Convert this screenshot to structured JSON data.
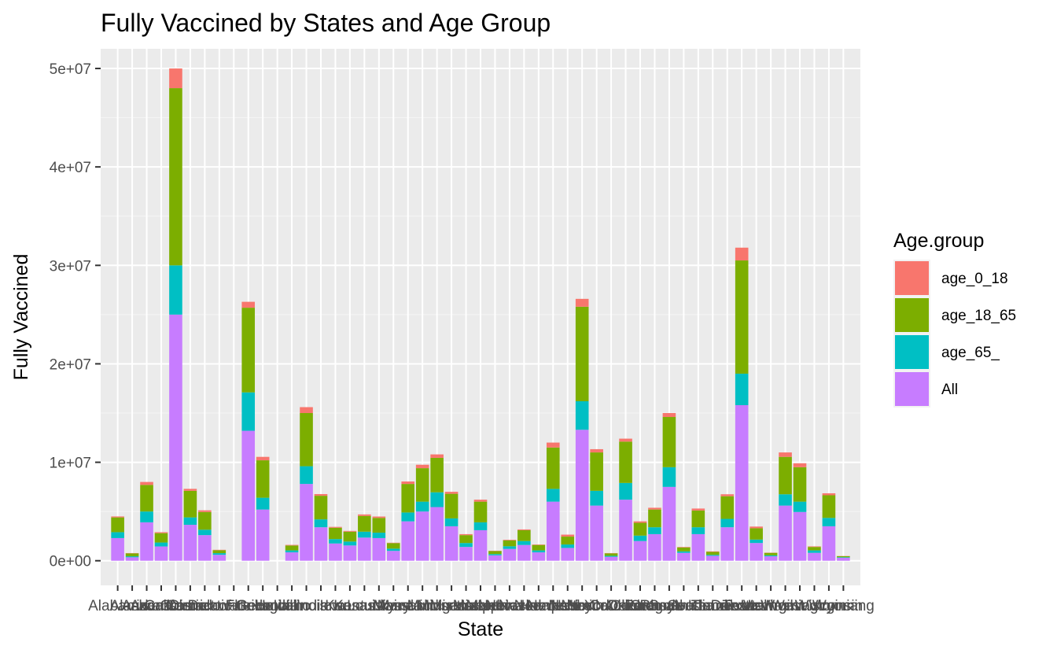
{
  "chart_data": {
    "type": "bar",
    "stacked": true,
    "title": "Fully Vaccined by States and Age Group",
    "xlabel": "State",
    "ylabel": "Fully Vaccined",
    "ylim": [
      0,
      52000000
    ],
    "yticks": [
      0,
      10000000,
      20000000,
      30000000,
      40000000,
      50000000
    ],
    "ytick_labels": [
      "0e+00",
      "1e+07",
      "2e+07",
      "3e+07",
      "4e+07",
      "5e+07"
    ],
    "grid": true,
    "legend_title": "Age.group",
    "legend_position": "right",
    "categories": [
      "Alabama",
      "Alaska",
      "Arizona",
      "Arkansas",
      "California",
      "Colorado",
      "Connecticut",
      "Delaware",
      "District of Columbia",
      "Florida",
      "Georgia",
      "Hawaii",
      "Idaho",
      "Illinois",
      "Indiana",
      "Iowa",
      "Kansas",
      "Kentucky",
      "Louisiana",
      "Maine",
      "Maryland",
      "Massachusetts",
      "Michigan",
      "Minnesota",
      "Mississippi",
      "Missouri",
      "Montana",
      "Nebraska",
      "Nevada",
      "New Hampshire",
      "New Jersey",
      "New Mexico",
      "New York",
      "North Carolina",
      "North Dakota",
      "Ohio",
      "Oklahoma",
      "Oregon",
      "Pennsylvania",
      "Rhode Island",
      "South Carolina",
      "South Dakota",
      "Tennessee",
      "Texas",
      "Utah",
      "Vermont",
      "Virginia",
      "Washington",
      "West Virginia",
      "Wisconsin",
      "Wyoming"
    ],
    "series": [
      {
        "name": "All",
        "color": "#C77CFF",
        "values": [
          2300000,
          350000,
          3900000,
          1450000,
          25000000,
          3650000,
          2600000,
          600000,
          0,
          13200000,
          5200000,
          0,
          850000,
          7800000,
          3400000,
          1750000,
          1550000,
          2350000,
          2300000,
          1000000,
          4000000,
          5000000,
          5450000,
          3500000,
          1400000,
          3100000,
          550000,
          1200000,
          1600000,
          850000,
          6000000,
          1300000,
          13300000,
          5600000,
          400000,
          6200000,
          2000000,
          2700000,
          7500000,
          800000,
          2700000,
          500000,
          3400000,
          15800000,
          1800000,
          450000,
          5600000,
          4950000,
          800000,
          3500000,
          300000
        ]
      },
      {
        "name": "age_65_",
        "color": "#00BFC4",
        "values": [
          600000,
          100000,
          1100000,
          400000,
          5000000,
          750000,
          550000,
          170000,
          0,
          3900000,
          1200000,
          0,
          200000,
          1800000,
          800000,
          450000,
          400000,
          600000,
          550000,
          230000,
          900000,
          1000000,
          1500000,
          800000,
          400000,
          800000,
          130000,
          270000,
          400000,
          200000,
          1300000,
          350000,
          2900000,
          1500000,
          100000,
          1700000,
          550000,
          700000,
          2000000,
          150000,
          700000,
          100000,
          850000,
          3200000,
          350000,
          100000,
          1150000,
          1050000,
          250000,
          850000,
          60000
        ]
      },
      {
        "name": "age_18_65",
        "color": "#7CAE00",
        "values": [
          1500000,
          300000,
          2700000,
          950000,
          18000000,
          2700000,
          1800000,
          300000,
          0,
          8600000,
          3800000,
          0,
          500000,
          5400000,
          2400000,
          1150000,
          1000000,
          1600000,
          1500000,
          560000,
          2900000,
          3400000,
          3500000,
          2500000,
          800000,
          2100000,
          300000,
          600000,
          1100000,
          550000,
          4200000,
          800000,
          9600000,
          3900000,
          250000,
          4200000,
          1300000,
          1800000,
          5100000,
          400000,
          1700000,
          300000,
          2300000,
          11500000,
          1150000,
          250000,
          3800000,
          3500000,
          350000,
          2300000,
          100000
        ]
      },
      {
        "name": "age_0_18",
        "color": "#F8766D",
        "values": [
          100000,
          30000,
          300000,
          100000,
          2000000,
          200000,
          170000,
          40000,
          0,
          600000,
          350000,
          0,
          60000,
          600000,
          170000,
          90000,
          80000,
          150000,
          140000,
          40000,
          250000,
          350000,
          350000,
          200000,
          100000,
          200000,
          30000,
          60000,
          80000,
          50000,
          500000,
          200000,
          800000,
          330000,
          30000,
          300000,
          150000,
          180000,
          400000,
          50000,
          200000,
          50000,
          200000,
          1300000,
          170000,
          25000,
          450000,
          400000,
          60000,
          200000,
          20000
        ]
      }
    ]
  }
}
